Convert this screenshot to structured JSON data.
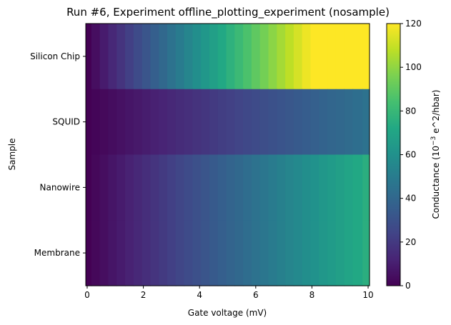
{
  "chart_data": {
    "type": "heatmap",
    "title": "Run #6, Experiment offline_plotting_experiment (nosample)",
    "xlabel": "Gate voltage (mV)",
    "ylabel": "Sample",
    "colorbar_label_prefix": "Conductance (10",
    "colorbar_label_exp": "−3",
    "colorbar_label_suffix": " e^2/hbar)",
    "colormap": "viridis",
    "clim": [
      0,
      120
    ],
    "xlim": [
      -0.05,
      10.05
    ],
    "x": [
      0,
      0.3,
      0.6,
      0.9,
      1.2,
      1.5,
      1.8,
      2.1,
      2.4,
      2.7,
      3.0,
      3.3,
      3.6,
      3.9,
      4.2,
      4.5,
      4.8,
      5.1,
      5.4,
      5.7,
      6.0,
      6.3,
      6.6,
      6.9,
      7.2,
      7.5,
      7.8,
      8.1,
      8.4,
      8.7,
      9.0,
      9.3,
      9.6,
      10.0
    ],
    "xticks": [
      "0",
      "2",
      "4",
      "6",
      "8",
      "10"
    ],
    "categories": [
      "Silicon Chip",
      "SQUID",
      "Nanowire",
      "Membrane"
    ],
    "slope_per_mV": [
      15,
      4.5,
      7.5,
      7.5
    ],
    "cbar_ticks": [
      "0",
      "20",
      "40",
      "60",
      "80",
      "100",
      "120"
    ]
  }
}
